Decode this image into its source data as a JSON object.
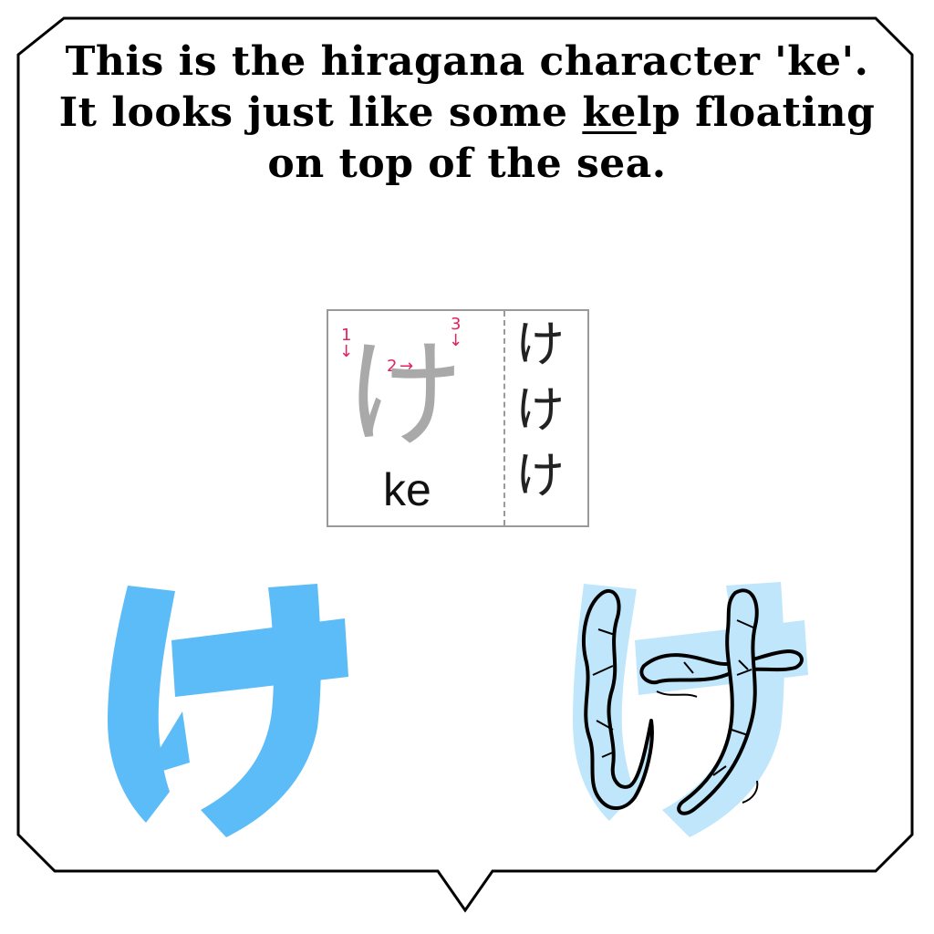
{
  "caption": {
    "line1": "This is the hiragana character 'ke'.",
    "line2_pre": "It looks just like some ",
    "line2_underlined": "ke",
    "line2_post": "lp floating",
    "line3": "on top of the sea."
  },
  "stroke_card": {
    "kana": "け",
    "romaji": "ke",
    "stroke_1": "1",
    "stroke_2": "2",
    "stroke_3": "3",
    "arrow_down": "↓",
    "arrow_right": "→",
    "practice_rows": [
      "け",
      "け",
      "け"
    ]
  },
  "colors": {
    "kana_blue": "#5bbcf7",
    "kelp_bg": "#bfe6fb",
    "stroke_numbers": "#e0245e",
    "card_border": "#9a9a9a"
  }
}
